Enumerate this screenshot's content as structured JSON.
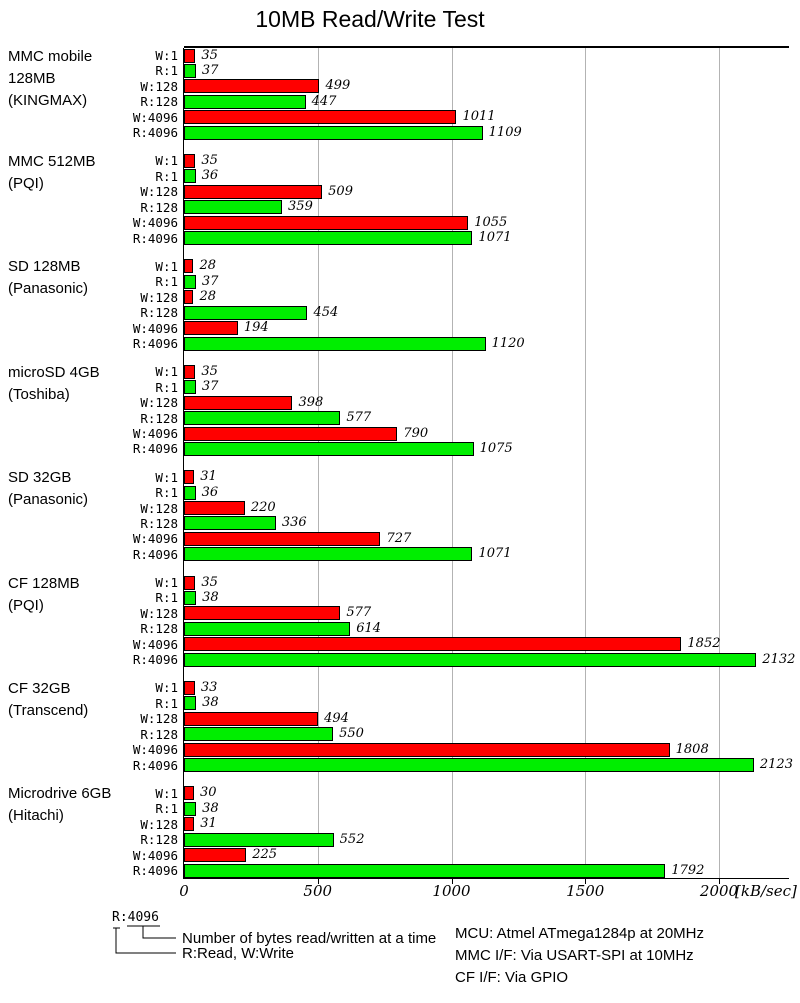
{
  "title": "10MB Read/Write Test",
  "chart_data": {
    "type": "bar",
    "orientation": "horizontal",
    "title": "10MB Read/Write Test",
    "xlabel": "[kB/sec]",
    "x_ticks": [
      0,
      500,
      1000,
      1500,
      2000
    ],
    "xlim": [
      0,
      2265
    ],
    "grid": "vertical-lines",
    "colors": {
      "write_bar": "#ff0000",
      "read_bar": "#00ee00",
      "gridline": "#b3b3b3"
    },
    "row_labels": [
      "W:1",
      "R:1",
      "W:128",
      "R:128",
      "W:4096",
      "R:4096"
    ],
    "groups": [
      {
        "label_lines": [
          "MMC mobile",
          "128MB",
          "(KINGMAX)"
        ],
        "values": [
          35,
          37,
          499,
          447,
          1011,
          1109
        ]
      },
      {
        "label_lines": [
          "MMC 512MB",
          "(PQI)"
        ],
        "values": [
          35,
          36,
          509,
          359,
          1055,
          1071
        ]
      },
      {
        "label_lines": [
          "SD 128MB",
          "(Panasonic)"
        ],
        "values": [
          28,
          37,
          28,
          454,
          194,
          1120
        ]
      },
      {
        "label_lines": [
          "microSD 4GB",
          "(Toshiba)"
        ],
        "values": [
          35,
          37,
          398,
          577,
          790,
          1075
        ]
      },
      {
        "label_lines": [
          "SD 32GB",
          "(Panasonic)"
        ],
        "values": [
          31,
          36,
          220,
          336,
          727,
          1071
        ]
      },
      {
        "label_lines": [
          "CF 128MB",
          "(PQI)"
        ],
        "values": [
          35,
          38,
          577,
          614,
          1852,
          2132
        ]
      },
      {
        "label_lines": [
          "CF 32GB",
          "(Transcend)"
        ],
        "values": [
          33,
          38,
          494,
          550,
          1808,
          2123
        ]
      },
      {
        "label_lines": [
          "Microdrive 6GB",
          "(Hitachi)"
        ],
        "values": [
          30,
          38,
          31,
          552,
          225,
          1792
        ]
      }
    ]
  },
  "legend": {
    "sample": "R:4096",
    "line1": "Number of bytes read/written at a time",
    "line2": "R:Read, W:Write"
  },
  "notes": [
    "MCU: Atmel ATmega1284p at 20MHz",
    "MMC I/F: Via USART-SPI at 10MHz",
    "CF I/F: Via GPIO"
  ]
}
